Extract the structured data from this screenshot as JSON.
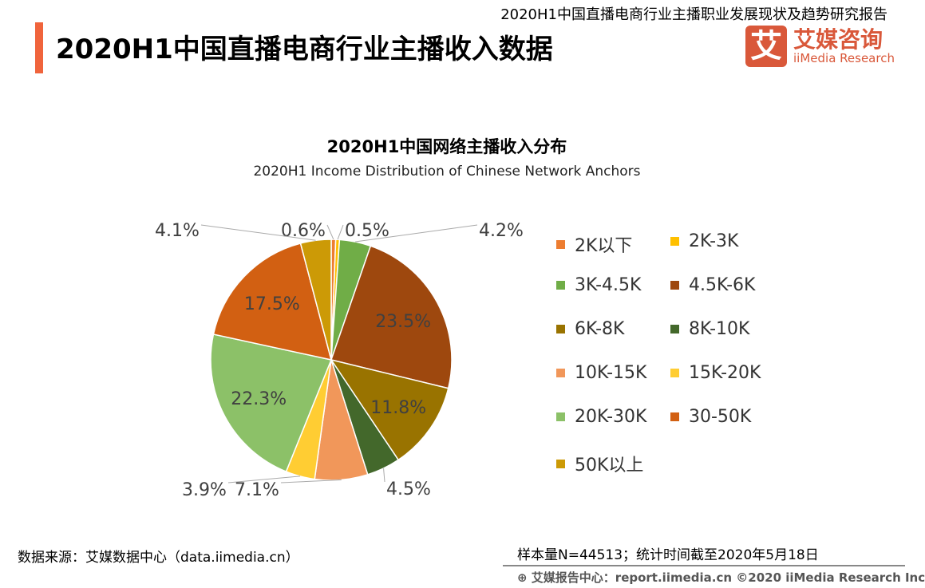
{
  "header": {
    "report_title": "2020H1中国直播电商行业主播职业发展现状及趋势研究报告",
    "page_title": "2020H1中国直播电商行业主播收入数据",
    "accent_color": "#F0643C"
  },
  "logo": {
    "mark": "艾",
    "name_cn": "艾媒咨询",
    "name_en": "iiMedia Research",
    "color": "#D9583A"
  },
  "chart_data": {
    "type": "pie",
    "title": "2020H1中国网络主播收入分布",
    "subtitle": "2020H1 Income Distribution of Chinese Network Anchors",
    "start": "12 o'clock, clockwise",
    "legend_position": "right",
    "slices": [
      {
        "label": "2K以下",
        "value": 0.6,
        "text": "0.6%",
        "color": "#ED7D31"
      },
      {
        "label": "2K-3K",
        "value": 0.5,
        "text": "0.5%",
        "color": "#FFC000"
      },
      {
        "label": "3K-4.5K",
        "value": 4.2,
        "text": "4.2%",
        "color": "#70AD47"
      },
      {
        "label": "4.5K-6K",
        "value": 23.5,
        "text": "23.5%",
        "color": "#9E480E"
      },
      {
        "label": "6K-8K",
        "value": 11.8,
        "text": "11.8%",
        "color": "#997300"
      },
      {
        "label": "8K-10K",
        "value": 4.5,
        "text": "4.5%",
        "color": "#43682B"
      },
      {
        "label": "10K-15K",
        "value": 7.1,
        "text": "7.1%",
        "color": "#F1975A"
      },
      {
        "label": "15K-20K",
        "value": 3.9,
        "text": "3.9%",
        "color": "#FFCD33"
      },
      {
        "label": "20K-30K",
        "value": 22.3,
        "text": "22.3%",
        "color": "#8CC168"
      },
      {
        "label": "30-50K",
        "value": 17.5,
        "text": "17.5%",
        "color": "#D26012"
      },
      {
        "label": "50K以上",
        "value": 4.1,
        "text": "4.1%",
        "color": "#CC9A06"
      }
    ]
  },
  "footer": {
    "source": "数据来源：艾媒数据中心（data.iimedia.cn）",
    "sample": "样本量N=44513；统计时间截至2020年5月18日",
    "credit": "艾媒报告中心：report.iimedia.cn    ©2020  iiMedia Research  Inc"
  }
}
